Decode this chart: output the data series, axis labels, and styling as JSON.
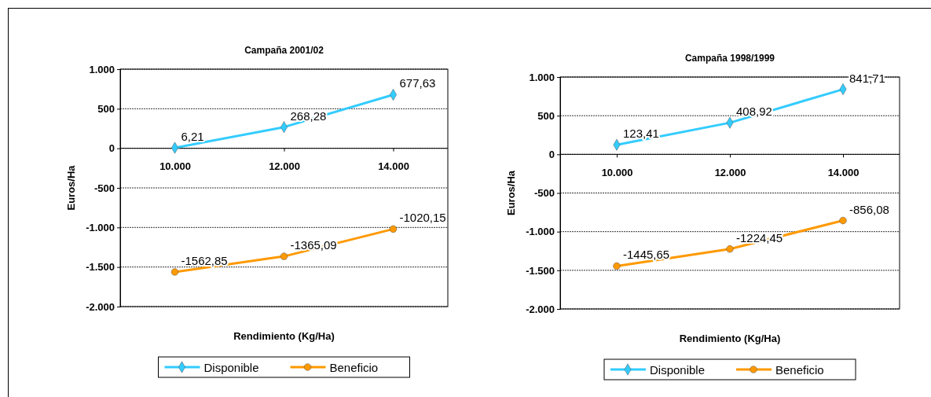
{
  "chart_data": [
    {
      "type": "line",
      "title": "Campaña 2001/02",
      "xlabel": "Rendimiento (Kg/Ha)",
      "ylabel": "Euros/Ha",
      "categories": [
        "10.000",
        "12.000",
        "14.000"
      ],
      "series": [
        {
          "name": "Disponible",
          "color": "#33ccff",
          "marker": "diamond",
          "values": [
            6.21,
            268.28,
            677.63
          ],
          "value_labels": [
            "6,21",
            "268,28",
            "677,63"
          ]
        },
        {
          "name": "Beneficio",
          "color": "#ff9900",
          "marker": "circle",
          "values": [
            -1562.85,
            -1365.09,
            -1020.15
          ],
          "value_labels": [
            "-1562,85",
            "-1365,09",
            "-1020,15"
          ]
        }
      ],
      "ylim": [
        -2000,
        1000
      ],
      "yticks": [
        {
          "value": 1000,
          "label": "1.000"
        },
        500,
        0,
        -500,
        {
          "value": -1000,
          "label": "-1.000"
        },
        {
          "value": -1500,
          "label": "-1.500"
        },
        {
          "value": -2000,
          "label": "-2.000"
        }
      ],
      "grid": "y",
      "legend": "bottom"
    },
    {
      "type": "line",
      "title": "Campaña 1998/1999",
      "xlabel": "Rendimiento (Kg/Ha)",
      "ylabel": "Euros/Ha",
      "categories": [
        "10.000",
        "12.000",
        "14.000"
      ],
      "series": [
        {
          "name": "Disponible",
          "color": "#33ccff",
          "marker": "diamond",
          "values": [
            123.41,
            408.92,
            841.71
          ],
          "value_labels": [
            "123,41",
            "408,92",
            "841,71"
          ]
        },
        {
          "name": "Beneficio",
          "color": "#ff9900",
          "marker": "circle",
          "values": [
            -1445.65,
            -1224.45,
            -856.08
          ],
          "value_labels": [
            "-1445,65",
            "-1224,45",
            "-856,08"
          ]
        }
      ],
      "ylim": [
        -2000,
        1000
      ],
      "yticks": [
        {
          "value": 1000,
          "label": "1.000"
        },
        500,
        0,
        -500,
        {
          "value": -1000,
          "label": "-1.000"
        },
        {
          "value": -1500,
          "label": "-1.500"
        },
        {
          "value": -2000,
          "label": "-2.000"
        }
      ],
      "grid": "y",
      "legend": "bottom"
    }
  ]
}
